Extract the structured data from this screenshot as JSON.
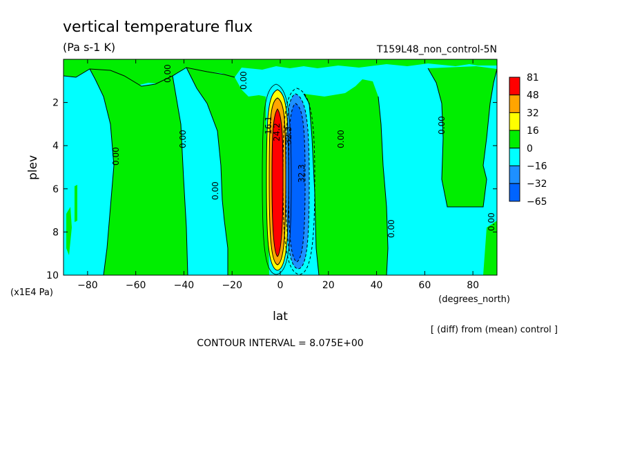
{
  "colors": {
    "red": "#ff0000",
    "orange": "#ffa500",
    "yellow": "#ffff00",
    "green": "#00ee00",
    "cyan": "#00ffff",
    "mid_blue": "#1e90ff",
    "blue": "#0064ff"
  },
  "chart_data": {
    "type": "heatmap",
    "title": "vertical temperature flux",
    "subtitle": "(Pa s-1 K)",
    "run_label": "T159L48_non_control-5N",
    "xlabel": "lat",
    "x_units": "(degrees_north)",
    "ylabel": "plev",
    "y_units": "(x1E4 Pa)",
    "xlim": [
      -90,
      90
    ],
    "ylim": [
      10,
      0
    ],
    "x_ticks": [
      -80,
      -60,
      -40,
      -20,
      0,
      20,
      40,
      60,
      80
    ],
    "y_ticks": [
      2,
      4,
      6,
      8,
      10
    ],
    "colorbar_levels": [
      "81",
      "48",
      "32",
      "16",
      "0",
      "−16",
      "−32",
      "−65"
    ],
    "note": "[ (diff) from (mean) control ]",
    "contour_interval": "CONTOUR INTERVAL = 8.075E+00",
    "contour_labels": [
      "0.00",
      "0.00",
      "0.00",
      "0.00",
      "0.00",
      "0.00",
      "0.00",
      "0.00",
      "0.00",
      "32.3",
      "16.1",
      "24.2",
      "32.3"
    ],
    "features": [
      {
        "name": "positive core",
        "lat_range": [
          -4,
          0
        ],
        "plev_range": [
          2.0,
          9.7
        ],
        "max": 81
      },
      {
        "name": "negative core",
        "lat_range": [
          1,
          9
        ],
        "plev_range": [
          2.2,
          9.6
        ],
        "min": -65
      }
    ]
  }
}
